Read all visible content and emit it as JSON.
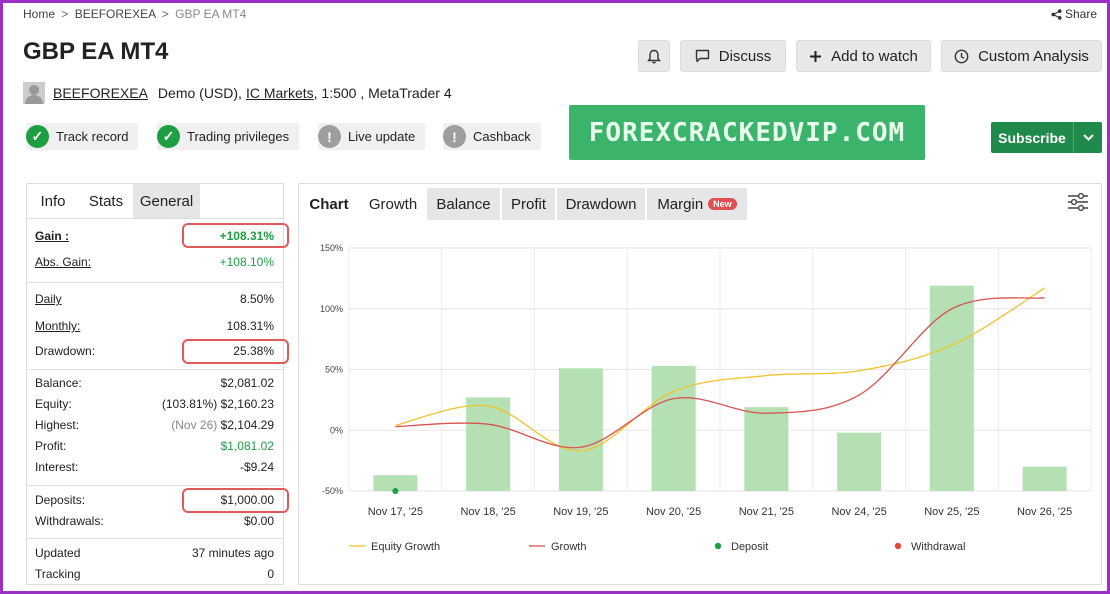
{
  "breadcrumb": {
    "home": "Home",
    "sep1": ">",
    "system": "BEEFOREXEA",
    "sep2": ">",
    "current": "GBP EA MT4"
  },
  "share_label": "Share",
  "title": "GBP EA MT4",
  "toolbar": {
    "discuss": "Discuss",
    "add_to_watch": "Add to watch",
    "custom_analysis": "Custom Analysis"
  },
  "account": {
    "owner": "BEEFOREXEA",
    "type": "Demo (USD),",
    "broker": "IC Markets",
    "leverage": ", 1:500 , MetaTrader 4"
  },
  "badges": [
    {
      "label": "Track record",
      "status": "ok"
    },
    {
      "label": "Trading privileges",
      "status": "ok"
    },
    {
      "label": "Live update",
      "status": "warn"
    },
    {
      "label": "Cashback",
      "status": "warn"
    }
  ],
  "banner_text": "FOREXCRACKEDVIP.COM",
  "subscribe_label": "Subscribe",
  "left_tabs": [
    "Info",
    "Stats",
    "General"
  ],
  "stats": {
    "gain": {
      "label": "Gain :",
      "value": "+108.31%"
    },
    "abs_gain": {
      "label": "Abs. Gain:",
      "value": "+108.10%"
    },
    "daily": {
      "label": "Daily",
      "value": "8.50%"
    },
    "monthly": {
      "label": "Monthly:",
      "value": "108.31%"
    },
    "drawdown": {
      "label": "Drawdown:",
      "value": "25.38%"
    },
    "balance": {
      "label": "Balance:",
      "value": "$2,081.02"
    },
    "equity": {
      "label": "Equity:",
      "note": "(103.81%)",
      "value": "$2,160.23"
    },
    "highest": {
      "label": "Highest:",
      "note": "(Nov 26)",
      "value": "$2,104.29"
    },
    "profit": {
      "label": "Profit:",
      "value": "$1,081.02"
    },
    "interest": {
      "label": "Interest:",
      "value": "-$9.24"
    },
    "deposits": {
      "label": "Deposits:",
      "value": "$1,000.00"
    },
    "withdrawals": {
      "label": "Withdrawals:",
      "value": "$0.00"
    },
    "updated": {
      "label": "Updated",
      "value": "37 minutes ago"
    },
    "tracking": {
      "label": "Tracking",
      "value": "0"
    }
  },
  "chart_tabs": {
    "chart": "Chart",
    "growth": "Growth",
    "balance": "Balance",
    "profit": "Profit",
    "drawdown": "Drawdown",
    "margin": "Margin",
    "new_badge": "New"
  },
  "colors": {
    "growth_bar": "#b5e0b3",
    "equity_line": "#f0c330",
    "growth_line": "#d9534f",
    "deposit": "#1e9e43",
    "withdrawal": "#e04a3a",
    "highlight": "#e05a5a",
    "brand_green": "#1f8a4c"
  },
  "chart_data": {
    "type": "bar",
    "categories": [
      "Nov 17, '25",
      "Nov 18, '25",
      "Nov 19, '25",
      "Nov 20, '25",
      "Nov 21, '25",
      "Nov 24, '25",
      "Nov 25, '25",
      "Nov 26, '25"
    ],
    "yticks": [
      "150%",
      "100%",
      "50%",
      "0%",
      "-50%"
    ],
    "ylim": [
      -50,
      150
    ],
    "grid": true,
    "legend_position": "bottom",
    "series": [
      {
        "name": "Growth",
        "kind": "bar",
        "values": [
          -37,
          27,
          51,
          53,
          19,
          -2,
          119,
          -30
        ]
      },
      {
        "name": "Equity Growth",
        "kind": "line",
        "values": [
          4,
          20,
          -17,
          32,
          45,
          49,
          70,
          117
        ]
      },
      {
        "name": "Growth",
        "kind": "line",
        "values": [
          3,
          5,
          -14,
          26,
          14,
          29,
          100,
          109
        ]
      }
    ],
    "deposits": [
      {
        "index": 0,
        "value": -50
      }
    ],
    "legend": [
      "Equity Growth",
      "Growth",
      "Deposit",
      "Withdrawal"
    ]
  }
}
